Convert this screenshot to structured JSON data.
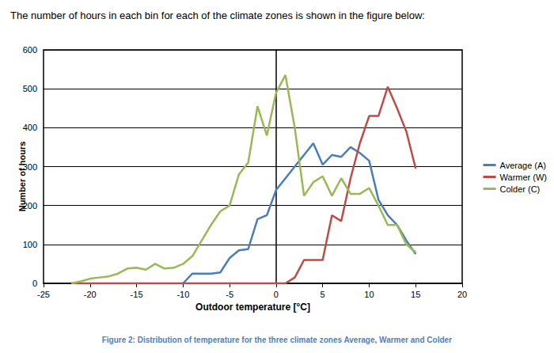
{
  "chart_data": {
    "type": "line",
    "title": "The number of hours in each bin for each of the climate zones is shown in the figure below:",
    "caption": "Figure 2: Distribution of temperature for the three climate zones Average, Warmer and Colder",
    "x_label": "Outdoor temperature [°C]",
    "y_label": "Number of hours",
    "x": [
      -22,
      -21,
      -20,
      -19,
      -18,
      -17,
      -16,
      -15,
      -14,
      -13,
      -12,
      -11,
      -10,
      -9,
      -8,
      -7,
      -6,
      -5,
      -4,
      -3,
      -2,
      -1,
      0,
      1,
      2,
      3,
      4,
      5,
      6,
      7,
      8,
      9,
      10,
      11,
      12,
      13,
      14,
      15
    ],
    "series": [
      {
        "name": "Average (A)",
        "color": "#4a7ebb",
        "values": [
          null,
          null,
          null,
          null,
          null,
          null,
          null,
          null,
          null,
          null,
          null,
          null,
          0,
          25,
          25,
          25,
          28,
          65,
          85,
          88,
          165,
          175,
          240,
          270,
          300,
          330,
          360,
          305,
          330,
          325,
          350,
          335,
          315,
          215,
          175,
          150,
          110,
          75
        ]
      },
      {
        "name": "Warmer (W)",
        "color": "#be4b48",
        "values": [
          0,
          0,
          0,
          0,
          0,
          0,
          0,
          0,
          0,
          0,
          0,
          0,
          0,
          0,
          0,
          0,
          0,
          0,
          0,
          0,
          0,
          0,
          0,
          0,
          15,
          60,
          60,
          60,
          175,
          160,
          270,
          360,
          430,
          430,
          505,
          450,
          390,
          295
        ]
      },
      {
        "name": "Colder (C)",
        "color": "#98b954",
        "values": [
          0,
          5,
          12,
          15,
          18,
          25,
          38,
          40,
          35,
          50,
          38,
          40,
          50,
          70,
          110,
          150,
          185,
          200,
          280,
          310,
          455,
          380,
          490,
          535,
          400,
          225,
          260,
          275,
          225,
          270,
          230,
          230,
          245,
          200,
          150,
          150,
          100,
          80
        ]
      }
    ],
    "xlim": [
      -25,
      20
    ],
    "xticks": [
      -25,
      -20,
      -15,
      -10,
      -5,
      0,
      5,
      10,
      15,
      20
    ],
    "ylim": [
      0,
      600
    ],
    "yticks": [
      0,
      100,
      200,
      300,
      400,
      500,
      600
    ],
    "grid": true,
    "legend": "right"
  }
}
